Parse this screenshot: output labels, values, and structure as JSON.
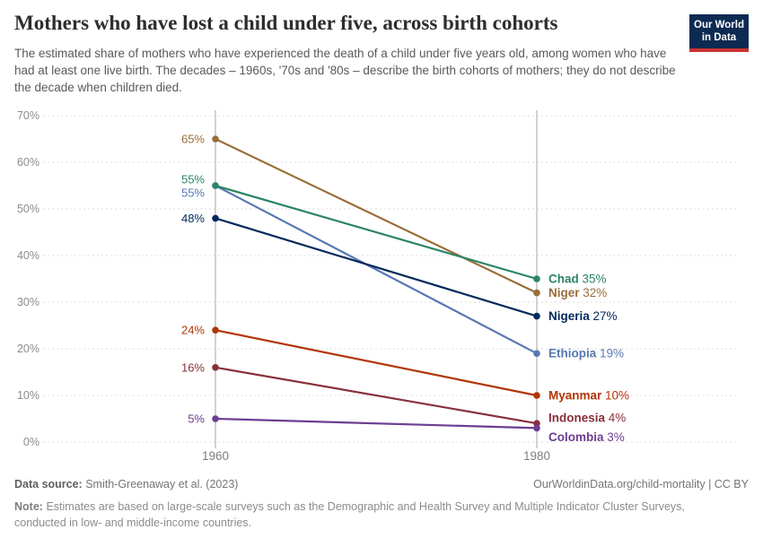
{
  "header": {
    "title": "Mothers who have lost a child under five, across birth cohorts",
    "subtitle": "The estimated share of mothers who have experienced the death of a child under five years old, among women who have had at least one live birth. The decades – 1960s, '70s and '80s – describe the birth cohorts of mothers; they do not describe the decade when children died.",
    "logo": {
      "line1": "Our World",
      "line2": "in Data",
      "bg_color": "#0d2a52",
      "stripe_color": "#cb3333"
    }
  },
  "chart_data": {
    "type": "line",
    "subtype": "slope",
    "x": [
      1960,
      1980
    ],
    "x_labels": [
      "1960",
      "1980"
    ],
    "yticks": [
      0,
      10,
      20,
      30,
      40,
      50,
      60,
      70
    ],
    "ytick_suffix": "%",
    "ylim": [
      0,
      70
    ],
    "grid": "dashed-horizontal",
    "legend_position": "right-inline-labels",
    "series": [
      {
        "name": "Chad",
        "values": [
          55,
          35
        ],
        "color": "#2c8465",
        "left_dy": -7,
        "right_dy": 0,
        "z": 7
      },
      {
        "name": "Niger",
        "values": [
          65,
          32
        ],
        "color": "#996d39",
        "left_dy": 0,
        "right_dy": 0,
        "z": 5
      },
      {
        "name": "Nigeria",
        "values": [
          48,
          27
        ],
        "color": "#00295b",
        "left_dy": 0,
        "right_dy": 0,
        "z": 6
      },
      {
        "name": "Ethiopia",
        "values": [
          55,
          19
        ],
        "color": "#5878b2",
        "left_dy": 8,
        "right_dy": 0,
        "z": 1
      },
      {
        "name": "Myanmar",
        "values": [
          24,
          10
        ],
        "color": "#b13507",
        "left_dy": 0,
        "right_dy": 0,
        "z": 2
      },
      {
        "name": "Indonesia",
        "values": [
          16,
          4
        ],
        "color": "#883039",
        "left_dy": 0,
        "right_dy": -6,
        "z": 3
      },
      {
        "name": "Colombia",
        "values": [
          5,
          3
        ],
        "color": "#6d3e91",
        "left_dy": 0,
        "right_dy": 10,
        "z": 4
      }
    ]
  },
  "footer": {
    "datasource_label": "Data source:",
    "datasource": "Smith-Greenaway et al. (2023)",
    "link": "OurWorldinData.org/child-mortality | CC BY",
    "note_label": "Note:",
    "note": "Estimates are based on large-scale surveys such as the Demographic and Health Survey and Multiple Indicator Cluster Surveys, conducted in low- and middle-income countries."
  }
}
